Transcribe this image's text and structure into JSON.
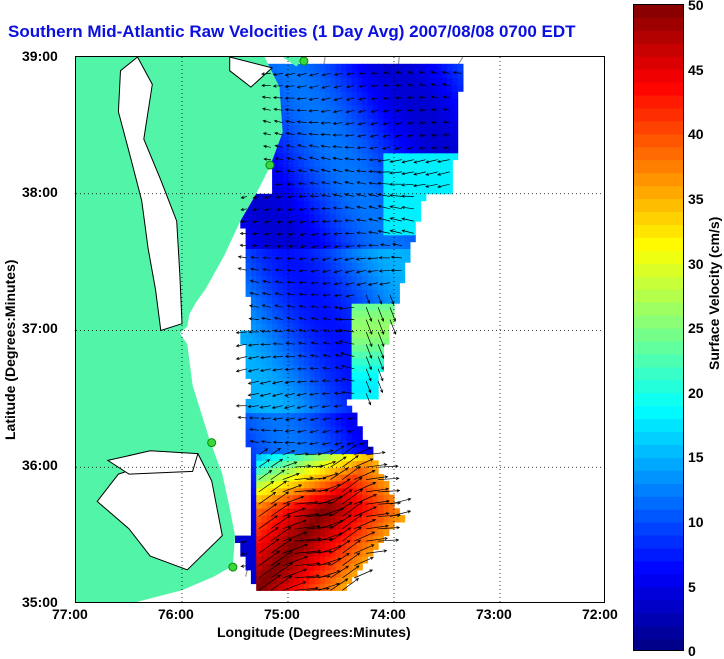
{
  "title": "Southern Mid-Atlantic Raw Velocities (1 Day Avg) 2007/08/08 0700 EDT",
  "xlabel": "Longitude (Degrees:Minutes)",
  "ylabel": "Latitude (Degrees:Minutes)",
  "x_ticks": [
    "77:00",
    "76:00",
    "75:00",
    "74:00",
    "73:00",
    "72:00"
  ],
  "y_ticks": [
    "39:00",
    "38:00",
    "37:00",
    "36:00",
    "35:00"
  ],
  "colorbar": {
    "label": "Surface Velocity (cm/s)",
    "ticks": [
      "50",
      "45",
      "40",
      "35",
      "30",
      "25",
      "20",
      "15",
      "10",
      "5",
      "0"
    ],
    "range": [
      0,
      50
    ],
    "colormap": "jet"
  },
  "colors": {
    "land": "#52f5a8",
    "title": "#0a10e0",
    "vectors": "#000000",
    "grid": "#000000",
    "bathymetry": "#a0a0a0",
    "sites": "#3ad83a"
  },
  "map_extent": {
    "lon": [
      -77.0,
      -72.0
    ],
    "lat": [
      35.0,
      39.0
    ]
  },
  "hf_radar_sites": [
    {
      "lon": -74.85,
      "lat": 38.97
    },
    {
      "lon": -75.17,
      "lat": 38.21
    },
    {
      "lon": -75.72,
      "lat": 36.18
    },
    {
      "lon": -75.52,
      "lat": 35.27
    }
  ],
  "velocity_field": {
    "description_regions": [
      {
        "area": "north (38.2-39.0N)",
        "speed_cm_s": 8
      },
      {
        "area": "central (36.5-38.0N)",
        "speed_cm_s": 12
      },
      {
        "area": "east edge near 36.8N 74.1W",
        "speed_cm_s": 24
      },
      {
        "area": "southern Gulf Stream region (35.2-36.0N, 74-75W)",
        "speed_cm_s": 50
      }
    ]
  }
}
